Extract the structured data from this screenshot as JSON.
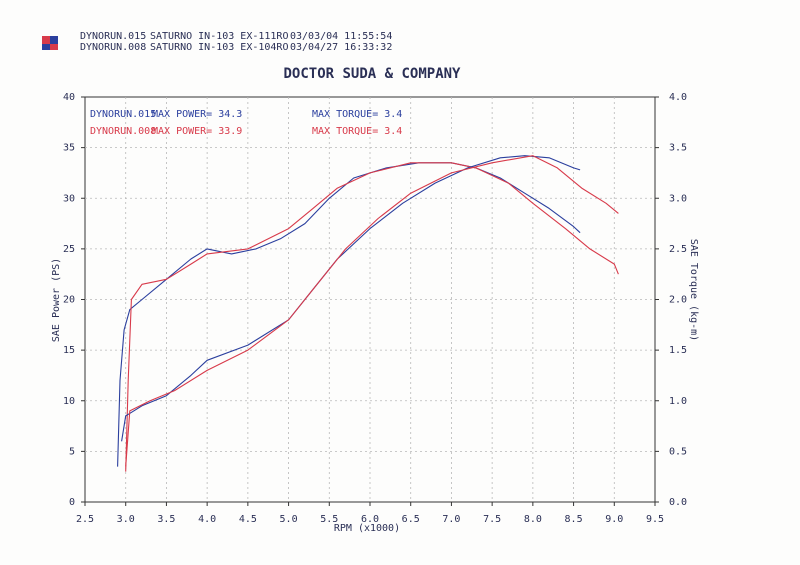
{
  "chart_data": {
    "type": "line",
    "title": "DOCTOR SUDA & COMPANY",
    "header": [
      {
        "file": "DYNORUN.015",
        "engine": "SATURNO IN-103 EX-111RO",
        "date": "03/03/04 11:55:54"
      },
      {
        "file": "DYNORUN.008",
        "engine": "SATURNO IN-103 EX-104RO",
        "date": "03/04/27 16:33:32"
      }
    ],
    "annotations": [
      {
        "run": "DYNORUN.015",
        "power": "MAX POWER= 34.3",
        "torque": "MAX TORQUE= 3.4",
        "color": "#2b3f9e"
      },
      {
        "run": "DYNORUN.008",
        "power": "MAX POWER= 33.9",
        "torque": "MAX TORQUE= 3.4",
        "color": "#d83a4a"
      }
    ],
    "xlabel": "RPM (x1000)",
    "ylabel": "SAE Power (PS)",
    "y2label": "SAE Torque (kg-m)",
    "xlim": [
      2.5,
      9.5
    ],
    "xticks": [
      2.5,
      {
        "value": 3,
        "label": "3.0"
      },
      3.5,
      {
        "value": 4,
        "label": "4.0"
      },
      4.5,
      {
        "value": 5,
        "label": "5.0"
      },
      5.5,
      {
        "value": 6,
        "label": "6.0"
      },
      6.5,
      {
        "value": 7,
        "label": "7.0"
      },
      7.5,
      {
        "value": 8,
        "label": "8.0"
      },
      8.5,
      {
        "value": 9,
        "label": "9.0"
      },
      9.5
    ],
    "ylim": [
      0,
      40
    ],
    "yticks": [
      0,
      5,
      10,
      15,
      20,
      25,
      30,
      35,
      40
    ],
    "y2lim": [
      0,
      4
    ],
    "y2ticks": [
      {
        "value": 0,
        "label": "0.0"
      },
      0.5,
      {
        "value": 1,
        "label": "1.0"
      },
      1.5,
      {
        "value": 2,
        "label": "2.0"
      },
      2.5,
      {
        "value": 3,
        "label": "3.0"
      },
      3.5,
      {
        "value": 4,
        "label": "4.0"
      }
    ],
    "grid": true,
    "series": [
      {
        "color": "#2b3f9e",
        "axis": "y",
        "x": [
          2.9,
          2.93,
          2.98,
          3.05,
          3.2,
          3.5,
          3.8,
          4.0,
          4.3,
          4.6,
          4.9,
          5.2,
          5.5,
          5.8,
          6.2,
          6.6,
          7.0,
          7.3,
          7.6,
          7.9,
          8.2,
          8.5,
          8.58
        ],
        "values": [
          3.5,
          12,
          17,
          19,
          20,
          22,
          24,
          25,
          24.5,
          25,
          26,
          27.5,
          30,
          32,
          33,
          33.5,
          33.5,
          33,
          32,
          30.5,
          29,
          27.2,
          26.6
        ]
      },
      {
        "color": "#d83a4a",
        "axis": "y",
        "x": [
          3.0,
          3.03,
          3.07,
          3.2,
          3.5,
          3.8,
          4.0,
          4.5,
          5.0,
          5.3,
          5.6,
          6.0,
          6.5,
          7.0,
          7.3,
          7.7,
          8.0,
          8.4,
          8.7,
          9.0,
          9.05
        ],
        "values": [
          3,
          12,
          20,
          21.5,
          22,
          23.5,
          24.5,
          25,
          27,
          29,
          31,
          32.5,
          33.5,
          33.5,
          33,
          31.5,
          29.5,
          27,
          25,
          23.5,
          22.5
        ]
      },
      {
        "color": "#2b3f9e",
        "axis": "y2",
        "x": [
          2.95,
          3.0,
          3.2,
          3.5,
          3.8,
          4.0,
          4.5,
          5.0,
          5.3,
          5.6,
          6.0,
          6.4,
          6.8,
          7.2,
          7.6,
          7.9,
          8.2,
          8.5,
          8.58
        ],
        "values": [
          0.6,
          0.85,
          0.95,
          1.05,
          1.25,
          1.4,
          1.55,
          1.8,
          2.1,
          2.4,
          2.7,
          2.95,
          3.15,
          3.3,
          3.4,
          3.42,
          3.4,
          3.3,
          3.28
        ]
      },
      {
        "color": "#d83a4a",
        "axis": "y2",
        "x": [
          3.0,
          3.05,
          3.3,
          3.6,
          4.0,
          4.5,
          5.0,
          5.3,
          5.7,
          6.1,
          6.5,
          7.0,
          7.5,
          8.0,
          8.3,
          8.6,
          8.9,
          9.05
        ],
        "values": [
          0.35,
          0.9,
          1.0,
          1.1,
          1.3,
          1.5,
          1.8,
          2.1,
          2.5,
          2.8,
          3.05,
          3.25,
          3.35,
          3.42,
          3.3,
          3.1,
          2.95,
          2.85
        ]
      }
    ]
  }
}
